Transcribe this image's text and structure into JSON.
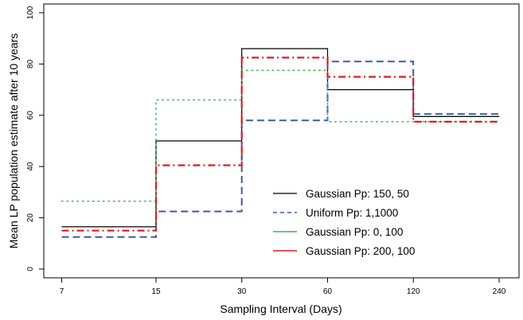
{
  "chart_data": {
    "type": "line",
    "step": true,
    "title": "",
    "xlabel": "Sampling Interval (Days)",
    "ylabel": "Mean LP population estimate after 10 years",
    "x_scale": "log",
    "x_ticks": [
      7,
      15,
      30,
      60,
      120,
      240
    ],
    "x_tick_labels": [
      "7",
      "15",
      "30",
      "60",
      "120",
      "240"
    ],
    "xlim": [
      7,
      240
    ],
    "ylim": [
      0,
      100
    ],
    "y_ticks": [
      0,
      20,
      40,
      60,
      80,
      100
    ],
    "y_tick_labels": [
      "0",
      "20",
      "40",
      "60",
      "80",
      "100"
    ],
    "grid": false,
    "legend_position": "bottom-right",
    "series": [
      {
        "name": "Gaussian Pp: 150, 50",
        "color": "#000000",
        "dash": "solid",
        "values": [
          16.5,
          50,
          86,
          70,
          59.5
        ]
      },
      {
        "name": "Uniform Pp: 1,1000",
        "color": "#3b5ba5",
        "dash": "dashed",
        "values": [
          12.5,
          22.5,
          58,
          81,
          60.5
        ]
      },
      {
        "name": "Gaussian Pp: 0, 100",
        "color": "#3cb44b",
        "dash": "dotted",
        "values": [
          26.5,
          66,
          77.5,
          57.5,
          57.5
        ]
      },
      {
        "name": "Gaussian Pp: 200, 100",
        "color": "#e31a1c",
        "dash": "dashdot",
        "values": [
          15,
          40.5,
          82.5,
          75,
          57.5
        ]
      }
    ]
  }
}
